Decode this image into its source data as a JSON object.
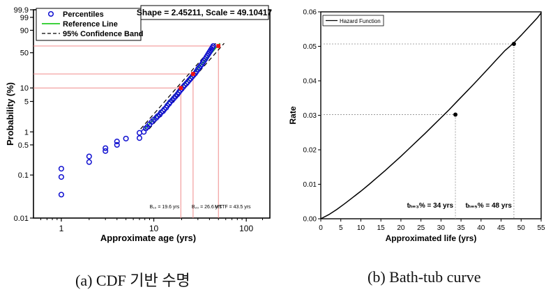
{
  "captions": {
    "a": "(a)  CDF 기반 수명",
    "b": "(b)  Bath-tub curve"
  },
  "chart_data": [
    {
      "type": "scatter",
      "scale": "weibull-probability",
      "title": "",
      "xlabel": "Approximate age (yrs)",
      "ylabel": "Probability (%)",
      "xscale": "log",
      "xlim": [
        0.5,
        180
      ],
      "ylim": [
        0.01,
        99.9
      ],
      "xticks": [
        1,
        10,
        100
      ],
      "xtick_labels": [
        "1",
        "10",
        "100"
      ],
      "yticks": [
        0.01,
        0.1,
        0.5,
        1,
        5,
        10,
        50,
        90,
        99,
        99.9
      ],
      "ytick_labels": [
        "0.01",
        "0.1",
        "0.5",
        "1",
        "5",
        "10",
        "50",
        "90",
        "99",
        "99.9"
      ],
      "params_label": "Shape = 2.45211, Scale = 49.10417",
      "shape": 2.45211,
      "scale_param": 49.10417,
      "legend": {
        "placement": "top-left",
        "entries": [
          {
            "label": "Percentiles",
            "style": "marker",
            "color": "#1010d0"
          },
          {
            "label": "Reference Line",
            "style": "line",
            "color": "#22cc22"
          },
          {
            "label": "95% Confidence Band",
            "style": "dash",
            "color": "#000000"
          }
        ]
      },
      "series": [
        {
          "name": "Percentiles",
          "color": "#1010d0",
          "x": [
            1,
            1,
            1,
            2,
            2,
            3,
            3,
            4,
            4,
            5,
            7,
            7,
            7.8,
            8.2,
            8.5,
            9,
            9.5,
            10,
            10.6,
            11,
            11.6,
            12,
            12.6,
            13,
            13.6,
            14,
            14.6,
            15,
            15.8,
            16.5,
            17.2,
            18,
            18.7,
            19.3,
            20,
            20.8,
            21.6,
            22.5,
            23.3,
            24.2,
            25,
            26,
            27,
            28,
            29,
            30,
            31,
            32,
            33,
            34,
            35,
            36,
            37,
            38,
            39,
            40,
            41,
            42,
            43,
            44
          ],
          "y": [
            0.035,
            0.09,
            0.14,
            0.2,
            0.27,
            0.36,
            0.42,
            0.5,
            0.6,
            0.7,
            0.72,
            0.95,
            1.0,
            1.2,
            1.3,
            1.5,
            1.7,
            1.9,
            2.1,
            2.3,
            2.5,
            2.8,
            3.0,
            3.3,
            3.6,
            4.0,
            4.4,
            4.8,
            5.3,
            5.9,
            6.5,
            7.2,
            8.0,
            8.8,
            9.5,
            10.5,
            11.5,
            12.5,
            13.5,
            14.8,
            16,
            17.5,
            19,
            20.5,
            22.5,
            25,
            27,
            29,
            31,
            34,
            36.5,
            39,
            42,
            45,
            48,
            51,
            54,
            57,
            60,
            63
          ]
        }
      ],
      "reference_line": {
        "name": "Reference Line",
        "color": "#22cc22",
        "x_range": [
          8,
          52
        ]
      },
      "confidence_band": {
        "name": "95% Confidence Band",
        "color": "#000000",
        "x_range": [
          8,
          52
        ]
      },
      "highlights": [
        {
          "label": "B₁₀ = 19.6 yrs",
          "x": 19.6,
          "y": 10,
          "marker_color": "#ee1111"
        },
        {
          "label": "B₂₀ = 26.6 yrs",
          "x": 26.6,
          "y": 20,
          "marker_color": "#ee1111"
        },
        {
          "label": "MTTF = 43.5 yrs",
          "x": 50,
          "y": 63,
          "marker_color": "#ee1111"
        }
      ],
      "guide_color": "#f08a8a",
      "grid": false
    },
    {
      "type": "line",
      "title": "",
      "xlabel": "Approximated life (yrs)",
      "ylabel": "Rate",
      "xlim": [
        0,
        55
      ],
      "ylim": [
        0,
        0.06
      ],
      "xticks": [
        0,
        5,
        10,
        15,
        20,
        25,
        30,
        35,
        40,
        45,
        50,
        55
      ],
      "yticks": [
        0,
        0.01,
        0.02,
        0.03,
        0.04,
        0.05,
        0.06
      ],
      "ytick_labels": [
        "0.00",
        "0.01",
        "0.02",
        "0.03",
        "0.04",
        "0.05",
        "0.06"
      ],
      "legend": {
        "placement": "top-left",
        "entries": [
          {
            "label": "Hazard Function",
            "style": "line",
            "color": "#000000"
          }
        ]
      },
      "series": [
        {
          "name": "Hazard Function",
          "color": "#000000",
          "x": [
            0,
            2,
            4,
            6,
            8,
            10,
            12,
            14,
            16,
            18,
            20,
            22,
            24,
            26,
            28,
            30,
            32,
            34,
            36,
            38,
            40,
            42,
            44,
            46,
            48,
            50,
            52,
            54,
            55
          ],
          "y": [
            0.0,
            0.0012,
            0.0027,
            0.0044,
            0.0062,
            0.008,
            0.0099,
            0.0119,
            0.0139,
            0.016,
            0.0181,
            0.0203,
            0.0225,
            0.0247,
            0.027,
            0.0293,
            0.0316,
            0.034,
            0.0364,
            0.0388,
            0.0413,
            0.0438,
            0.0463,
            0.0488,
            0.0508,
            0.0532,
            0.0557,
            0.0582,
            0.0597
          ]
        }
      ],
      "points": [
        {
          "label": "tₕ₌₃% = 34 yrs",
          "x": 33.6,
          "y": 0.0302
        },
        {
          "label": "tₕ₌₅% = 48 yrs",
          "x": 48.2,
          "y": 0.0507
        }
      ],
      "grid": false
    }
  ]
}
